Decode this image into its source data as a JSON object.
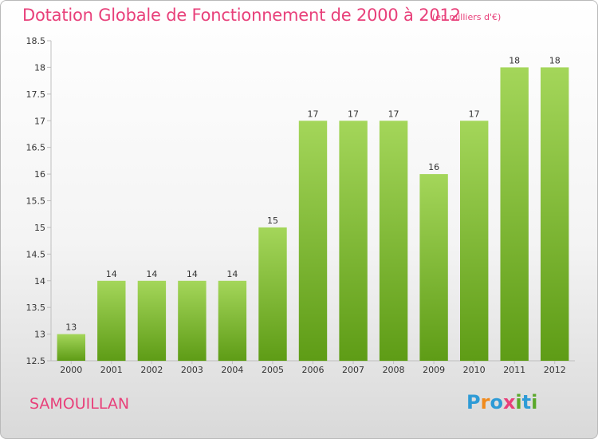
{
  "header": {
    "title": "Dotation Globale de Fonctionnement de 2000 à 2012",
    "unit": "(en milliers d'€)"
  },
  "footer": {
    "commune": "SAMOUILLAN",
    "logo_letters": [
      "P",
      "r",
      "o",
      "x",
      "i",
      "t",
      "i"
    ],
    "logo_colors": [
      "#2e9bd6",
      "#f08a1c",
      "#2e9bd6",
      "#e8407a",
      "#5aa82a",
      "#2e9bd6",
      "#5aa82a"
    ]
  },
  "chart_data": {
    "type": "bar",
    "title": "Dotation Globale de Fonctionnement de 2000 à 2012",
    "subtitle": "(en milliers d'€)",
    "categories": [
      "2000",
      "2001",
      "2002",
      "2003",
      "2004",
      "2005",
      "2006",
      "2007",
      "2008",
      "2009",
      "2010",
      "2011",
      "2012"
    ],
    "values": [
      13,
      14,
      14,
      14,
      14,
      15,
      17,
      17,
      17,
      16,
      17,
      18,
      18
    ],
    "ylim": [
      12.5,
      18.5
    ],
    "yticks": [
      12.5,
      13,
      13.5,
      14,
      14.5,
      15,
      15.5,
      16,
      16.5,
      17,
      17.5,
      18,
      18.5
    ],
    "grid": false,
    "bar_color_top": "#a4d65a",
    "bar_color_bottom": "#5e9c16",
    "axis_color": "#bfbfbf"
  }
}
